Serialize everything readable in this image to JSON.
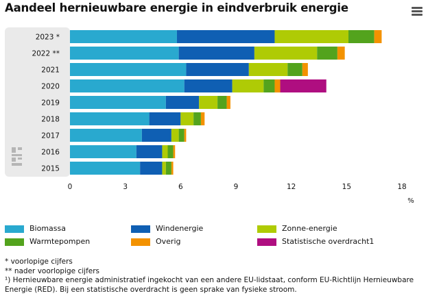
{
  "title": "Aandeel hernieuwbare energie in eindverbruik energie",
  "menu_icon": "hamburger-menu-icon",
  "logo_icon": "cbs-logo-icon",
  "chart_data": {
    "type": "bar",
    "orientation": "horizontal",
    "stacked": true,
    "categories": [
      "2023 *",
      "2022 **",
      "2021",
      "2020",
      "2019",
      "2018",
      "2017",
      "2016",
      "2015"
    ],
    "xlim": [
      0,
      18
    ],
    "xticks": [
      "0",
      "3",
      "6",
      "9",
      "12",
      "15",
      "18"
    ],
    "xunit": "%",
    "grid": false,
    "legend_placement": "bottom",
    "series": [
      {
        "name": "Biomassa",
        "color": "#29a9cf",
        "values": [
          5.8,
          5.9,
          6.3,
          6.2,
          5.2,
          4.3,
          3.9,
          3.6,
          3.8
        ]
      },
      {
        "name": "Windenergie",
        "color": "#0f5fb3",
        "values": [
          5.3,
          4.1,
          3.4,
          2.6,
          1.8,
          1.7,
          1.6,
          1.4,
          1.2
        ]
      },
      {
        "name": "Zonne-energie",
        "color": "#afcb05",
        "values": [
          4.0,
          3.4,
          2.1,
          1.7,
          1.0,
          0.7,
          0.4,
          0.3,
          0.2
        ]
      },
      {
        "name": "Warmtepompen",
        "color": "#53a31d",
        "values": [
          1.4,
          1.1,
          0.8,
          0.6,
          0.5,
          0.4,
          0.3,
          0.3,
          0.3
        ]
      },
      {
        "name": "Overig",
        "color": "#f39200",
        "values": [
          0.4,
          0.4,
          0.3,
          0.3,
          0.2,
          0.2,
          0.1,
          0.1,
          0.1
        ]
      },
      {
        "name": "Statistische overdracht1",
        "color": "#af0e80",
        "values": [
          0,
          0,
          0,
          2.5,
          0,
          0,
          0,
          0,
          0
        ]
      }
    ]
  },
  "footnotes": [
    "* voorlopige cijfers",
    "** nader voorlopige cijfers",
    "¹) Hernieuwbare energie administratief ingekocht van een andere EU-lidstaat, conform EU-Richtlijn Hernieuwbare Energie (RED). Bij een statistische overdracht is geen sprake van fysieke stroom."
  ]
}
